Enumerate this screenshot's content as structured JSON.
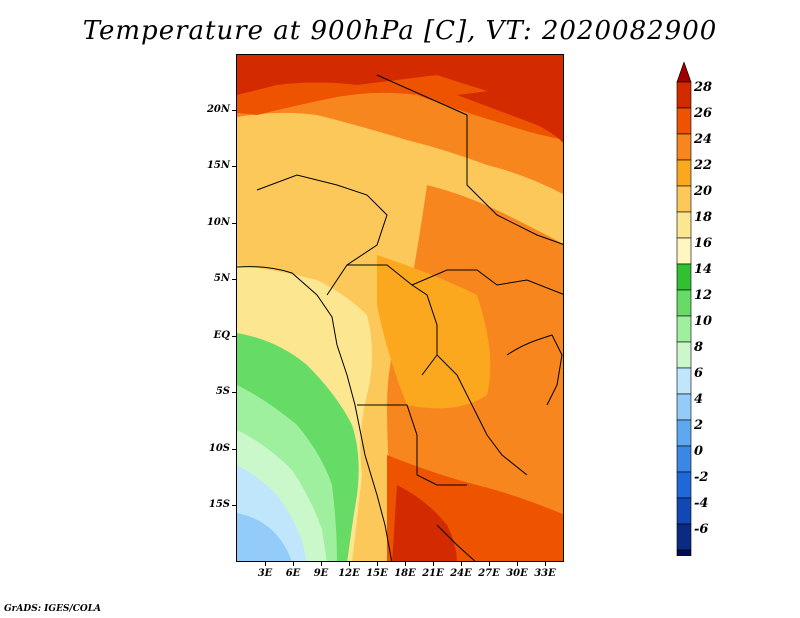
{
  "title": "Temperature at 900hPa [C], VT: 2020082900",
  "credit": "GrADS: IGES/COLA",
  "map": {
    "lat_labels": [
      "20N",
      "15N",
      "10N",
      "5N",
      "EQ",
      "5S",
      "10S",
      "15S"
    ],
    "lon_labels": [
      "3E",
      "6E",
      "9E",
      "12E",
      "15E",
      "18E",
      "21E",
      "24E",
      "27E",
      "30E",
      "33E"
    ]
  },
  "colorbar": {
    "labels": [
      "28",
      "26",
      "24",
      "22",
      "20",
      "18",
      "16",
      "14",
      "12",
      "10",
      "8",
      "6",
      "4",
      "2",
      "0",
      "-2",
      "-4",
      "-6"
    ],
    "colors": [
      "#a00000",
      "#d42a00",
      "#ee5400",
      "#f7861e",
      "#fca81e",
      "#fcc85a",
      "#fde690",
      "#fff6c0",
      "#30c030",
      "#66dc66",
      "#9ef09e",
      "#cbf8cb",
      "#bfe6fb",
      "#93ccf8",
      "#5da8f0",
      "#3a88e6",
      "#1f68d8",
      "#1248b4",
      "#0a2a84",
      "#000c54",
      "#dcdcf8"
    ]
  }
}
